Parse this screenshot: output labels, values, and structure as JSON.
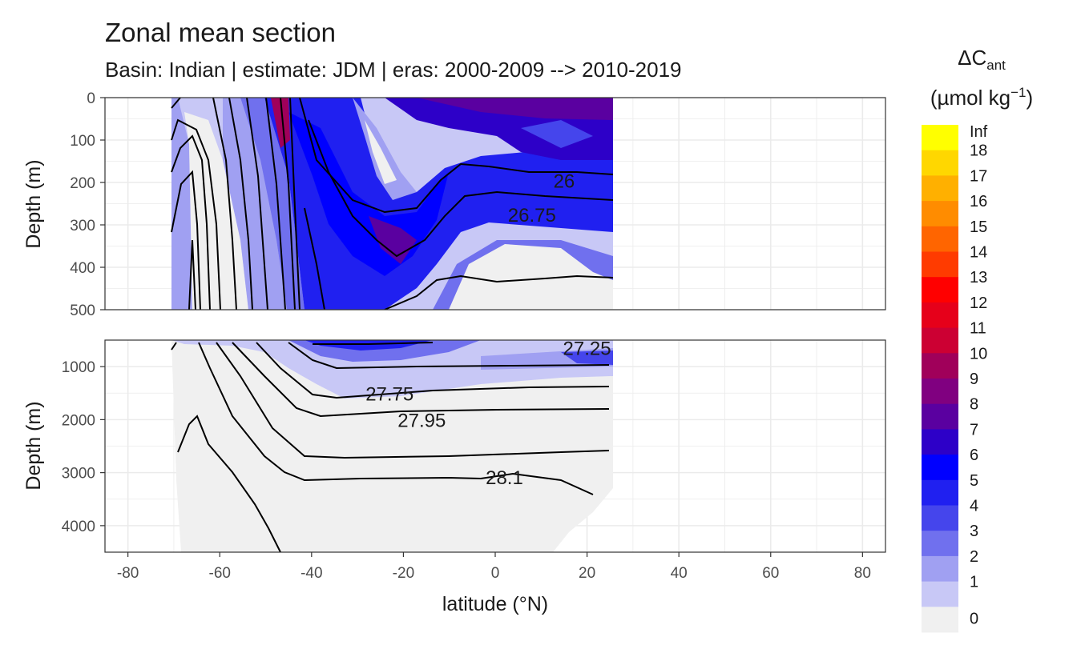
{
  "title": "Zonal mean section",
  "subtitle": "Basin: Indian | estimate: JDM  | eras: 2000-2009 --> 2010-2019",
  "chart_data": {
    "type": "heatmap",
    "description_panels": [
      {
        "name": "upper",
        "ylim": [
          500,
          0
        ],
        "yticks": [
          0,
          100,
          200,
          300,
          400,
          500
        ]
      },
      {
        "name": "lower",
        "ylim": [
          4500,
          500
        ],
        "yticks": [
          1000,
          2000,
          3000,
          4000
        ]
      }
    ],
    "xlabel": "latitude (°N)",
    "ylabel": "Depth (m)",
    "xlim": [
      -85,
      85
    ],
    "xticks": [
      -80,
      -60,
      -40,
      -20,
      0,
      20,
      40,
      60,
      80
    ],
    "data_lat_range": [
      -70,
      25.5
    ],
    "legend": {
      "title_main": "ΔC",
      "title_sub": "ant",
      "unit_main": "(µmol kg",
      "unit_sup": "−1",
      "unit_end": ")",
      "position": "right",
      "labels": [
        "Inf",
        "18",
        "17",
        "16",
        "15",
        "14",
        "13",
        "12",
        "11",
        "10",
        "9",
        "8",
        "7",
        "6",
        "5",
        "4",
        "3",
        "2",
        "1",
        "0"
      ],
      "colors": [
        "#ffff00",
        "#ffd700",
        "#ffb000",
        "#ff8c00",
        "#ff6500",
        "#ff3b00",
        "#ff0000",
        "#e6001a",
        "#cc0033",
        "#a0005a",
        "#800080",
        "#5a00a0",
        "#2d00c8",
        "#0000ff",
        "#2020f0",
        "#4545ec",
        "#7070ee",
        "#a0a0f2",
        "#c8c8f6",
        "#f0f0f0"
      ]
    },
    "isopycnals": [
      {
        "label": "26",
        "panel": "upper",
        "depths": [
          [
            -16,
            265
          ],
          [
            -10,
            220
          ],
          [
            -5,
            195
          ],
          [
            0,
            190
          ],
          [
            10,
            185
          ],
          [
            20,
            180
          ],
          [
            25.5,
            185
          ]
        ]
      },
      {
        "label": "26.75",
        "panel": "upper",
        "depths": [
          [
            -22,
            375
          ],
          [
            -15,
            330
          ],
          [
            -8,
            280
          ],
          [
            0,
            265
          ],
          [
            10,
            275
          ],
          [
            20,
            290
          ],
          [
            25.5,
            290
          ]
        ]
      },
      {
        "label": "27.25",
        "panel": "lower",
        "depths": [
          [
            -40,
            920
          ],
          [
            -20,
            880
          ],
          [
            0,
            860
          ],
          [
            20,
            830
          ],
          [
            25.5,
            830
          ]
        ]
      },
      {
        "label": "27.75",
        "panel": "lower",
        "depths": [
          [
            -40,
            1550
          ],
          [
            -20,
            1430
          ],
          [
            0,
            1420
          ],
          [
            24,
            1400
          ]
        ]
      },
      {
        "label": "27.95",
        "panel": "lower",
        "depths": [
          [
            -35,
            1950
          ],
          [
            -20,
            1870
          ],
          [
            0,
            1850
          ],
          [
            24,
            1850
          ]
        ]
      },
      {
        "label": "28.1",
        "panel": "lower",
        "depths": [
          [
            -35,
            3100
          ],
          [
            -10,
            3080
          ],
          [
            10,
            3100
          ],
          [
            20,
            3220
          ],
          [
            24,
            3400
          ]
        ]
      }
    ]
  }
}
